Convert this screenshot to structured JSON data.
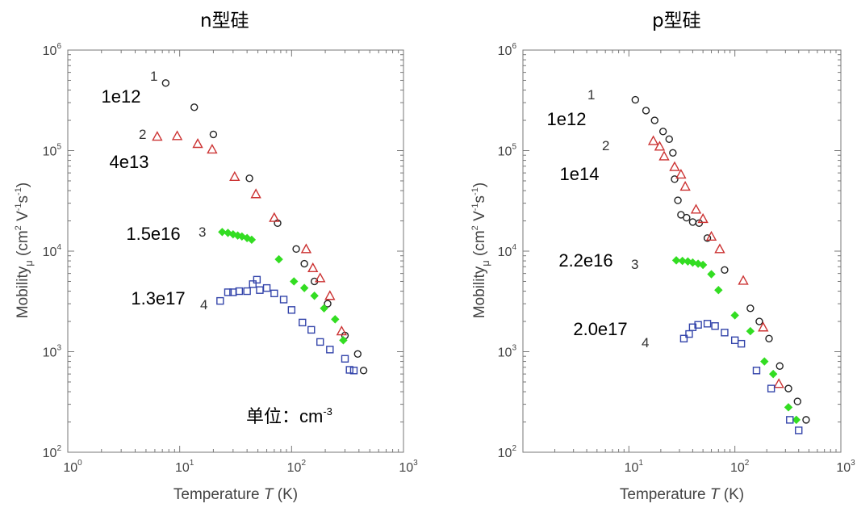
{
  "titles": {
    "left": "n型硅",
    "right": "p型硅"
  },
  "unit_note": {
    "text": "单位：cm",
    "sup": "-3"
  },
  "chart_data": [
    {
      "type": "scatter",
      "title": "n型硅",
      "xlabel": "Temperature T (K)",
      "ylabel": "Mobility μ (cm² V⁻¹ s⁻¹)",
      "x_scale": "log",
      "y_scale": "log",
      "xlim": [
        1,
        1000
      ],
      "ylim": [
        100,
        1000000
      ],
      "x_ticks": [
        "10^0",
        "10^1",
        "10^2",
        "10^3"
      ],
      "y_ticks": [
        "10^2",
        "10^3",
        "10^4",
        "10^5",
        "10^6"
      ],
      "grid": false,
      "series": [
        {
          "name": "1e12",
          "curve_label": "1",
          "marker": "circle",
          "color": "#222222",
          "points": [
            [
              7.5,
              470000
            ],
            [
              13.5,
              270000
            ],
            [
              20,
              145000
            ],
            [
              42,
              53000
            ],
            [
              75,
              19000
            ],
            [
              110,
              10500
            ],
            [
              130,
              7500
            ],
            [
              160,
              5000
            ],
            [
              210,
              3000
            ],
            [
              300,
              1450
            ],
            [
              390,
              950
            ],
            [
              440,
              650
            ]
          ]
        },
        {
          "name": "4e13",
          "curve_label": "2",
          "marker": "triangle",
          "color": "#cc3333",
          "points": [
            [
              6.3,
              138000
            ],
            [
              9.5,
              140000
            ],
            [
              14.5,
              117000
            ],
            [
              19.5,
              103000
            ],
            [
              31,
              55000
            ],
            [
              48,
              37000
            ],
            [
              70,
              21500
            ],
            [
              135,
              10500
            ],
            [
              155,
              6800
            ],
            [
              180,
              5400
            ],
            [
              220,
              3600
            ],
            [
              280,
              1600
            ]
          ]
        },
        {
          "name": "1.5e16",
          "curve_label": "3",
          "marker": "diamond",
          "color": "#33dd22",
          "points": [
            [
              24,
              15500
            ],
            [
              27,
              15200
            ],
            [
              30,
              14700
            ],
            [
              33,
              14300
            ],
            [
              36,
              14000
            ],
            [
              40,
              13500
            ],
            [
              44,
              13000
            ],
            [
              77,
              8300
            ],
            [
              105,
              5000
            ],
            [
              130,
              4300
            ],
            [
              160,
              3600
            ],
            [
              195,
              2700
            ],
            [
              245,
              2100
            ],
            [
              290,
              1300
            ]
          ]
        },
        {
          "name": "1.3e17",
          "curve_label": "4",
          "marker": "square",
          "color": "#3344aa",
          "points": [
            [
              23,
              3200
            ],
            [
              27,
              3900
            ],
            [
              30,
              3900
            ],
            [
              34,
              4000
            ],
            [
              40,
              4000
            ],
            [
              45,
              4700
            ],
            [
              49,
              5200
            ],
            [
              52,
              4100
            ],
            [
              60,
              4300
            ],
            [
              70,
              3800
            ],
            [
              85,
              3300
            ],
            [
              100,
              2600
            ],
            [
              125,
              1950
            ],
            [
              150,
              1650
            ],
            [
              180,
              1250
            ],
            [
              220,
              1050
            ],
            [
              300,
              850
            ],
            [
              330,
              660
            ],
            [
              360,
              650
            ]
          ]
        }
      ]
    },
    {
      "type": "scatter",
      "title": "p型硅",
      "xlabel": "Temperature T (K)",
      "ylabel": "Mobility μ (cm² V⁻¹ s⁻¹)",
      "x_scale": "log",
      "y_scale": "log",
      "xlim": [
        1,
        1000
      ],
      "ylim": [
        100,
        1000000
      ],
      "x_ticks": [
        "10^1",
        "10^2",
        "10^3"
      ],
      "y_ticks": [
        "10^2",
        "10^3",
        "10^4",
        "10^5",
        "10^6"
      ],
      "grid": false,
      "series": [
        {
          "name": "1e12",
          "curve_label": "1",
          "marker": "circle",
          "color": "#222222",
          "points": [
            [
              11.5,
              320000
            ],
            [
              14.5,
              250000
            ],
            [
              17.5,
              200000
            ],
            [
              21,
              155000
            ],
            [
              24,
              130000
            ],
            [
              26,
              95000
            ],
            [
              27,
              52000
            ],
            [
              29,
              32000
            ],
            [
              31,
              23000
            ],
            [
              35,
              21500
            ],
            [
              40,
              19500
            ],
            [
              46,
              19000
            ],
            [
              55,
              13500
            ],
            [
              80,
              6500
            ],
            [
              140,
              2700
            ],
            [
              170,
              2000
            ],
            [
              210,
              1350
            ],
            [
              265,
              720
            ],
            [
              320,
              430
            ],
            [
              390,
              320
            ],
            [
              470,
              210
            ]
          ]
        },
        {
          "name": "1e14",
          "curve_label": "2",
          "marker": "triangle",
          "color": "#cc3333",
          "points": [
            [
              17,
              125000
            ],
            [
              19.5,
              110000
            ],
            [
              21.5,
              88000
            ],
            [
              27,
              69000
            ],
            [
              31,
              58000
            ],
            [
              34,
              44000
            ],
            [
              43,
              26000
            ],
            [
              50,
              21000
            ],
            [
              60,
              14000
            ],
            [
              72,
              10500
            ],
            [
              120,
              5100
            ],
            [
              185,
              1750
            ],
            [
              260,
              480
            ]
          ]
        },
        {
          "name": "2.2e16",
          "curve_label": "3",
          "marker": "diamond",
          "color": "#33dd22",
          "points": [
            [
              28,
              8100
            ],
            [
              32,
              8000
            ],
            [
              36,
              7900
            ],
            [
              40,
              7700
            ],
            [
              45,
              7500
            ],
            [
              50,
              7300
            ],
            [
              60,
              5900
            ],
            [
              70,
              4100
            ],
            [
              100,
              2300
            ],
            [
              140,
              1600
            ],
            [
              190,
              800
            ],
            [
              230,
              600
            ],
            [
              320,
              280
            ],
            [
              380,
              210
            ]
          ]
        },
        {
          "name": "2.0e17",
          "curve_label": "4",
          "marker": "square",
          "color": "#3344aa",
          "points": [
            [
              33,
              1350
            ],
            [
              37,
              1500
            ],
            [
              40,
              1750
            ],
            [
              45,
              1850
            ],
            [
              55,
              1900
            ],
            [
              65,
              1800
            ],
            [
              80,
              1550
            ],
            [
              100,
              1300
            ],
            [
              115,
              1200
            ],
            [
              160,
              650
            ],
            [
              220,
              430
            ],
            [
              330,
              210
            ],
            [
              400,
              165
            ]
          ]
        }
      ]
    }
  ],
  "panels": [
    {
      "y_tick_labels": [
        "10",
        "10",
        "10",
        "10",
        "10"
      ],
      "y_tick_exps": [
        "2",
        "3",
        "4",
        "5",
        "6"
      ],
      "x_tick_labels": [
        "10",
        "10",
        "10",
        "10"
      ],
      "x_tick_exps": [
        "0",
        "1",
        "2",
        "3"
      ],
      "ylabel_main": "Mobility",
      "ylabel_sub": "μ",
      "ylabel_units": "(cm",
      "xlabel_main": "Temperature",
      "xlabel_var": "T",
      "xlabel_unit": "(K)",
      "big_labels": [
        "1e12",
        "4e13",
        "1.5e16",
        "1.3e17"
      ],
      "curve_numbers": [
        "1",
        "2",
        "3",
        "4"
      ]
    },
    {
      "y_tick_labels": [
        "10",
        "10",
        "10",
        "10",
        "10"
      ],
      "y_tick_exps": [
        "2",
        "3",
        "4",
        "5",
        "6"
      ],
      "x_tick_labels": [
        "10",
        "10",
        "10"
      ],
      "x_tick_exps": [
        "1",
        "2",
        "3"
      ],
      "ylabel_main": "Mobility",
      "ylabel_sub": "μ",
      "ylabel_units": "(cm",
      "xlabel_main": "Temperature",
      "xlabel_var": "T",
      "xlabel_unit": "(K)",
      "big_labels": [
        "1e12",
        "1e14",
        "2.2e16",
        "2.0e17"
      ],
      "curve_numbers": [
        "1",
        "2",
        "3",
        "4"
      ]
    }
  ]
}
